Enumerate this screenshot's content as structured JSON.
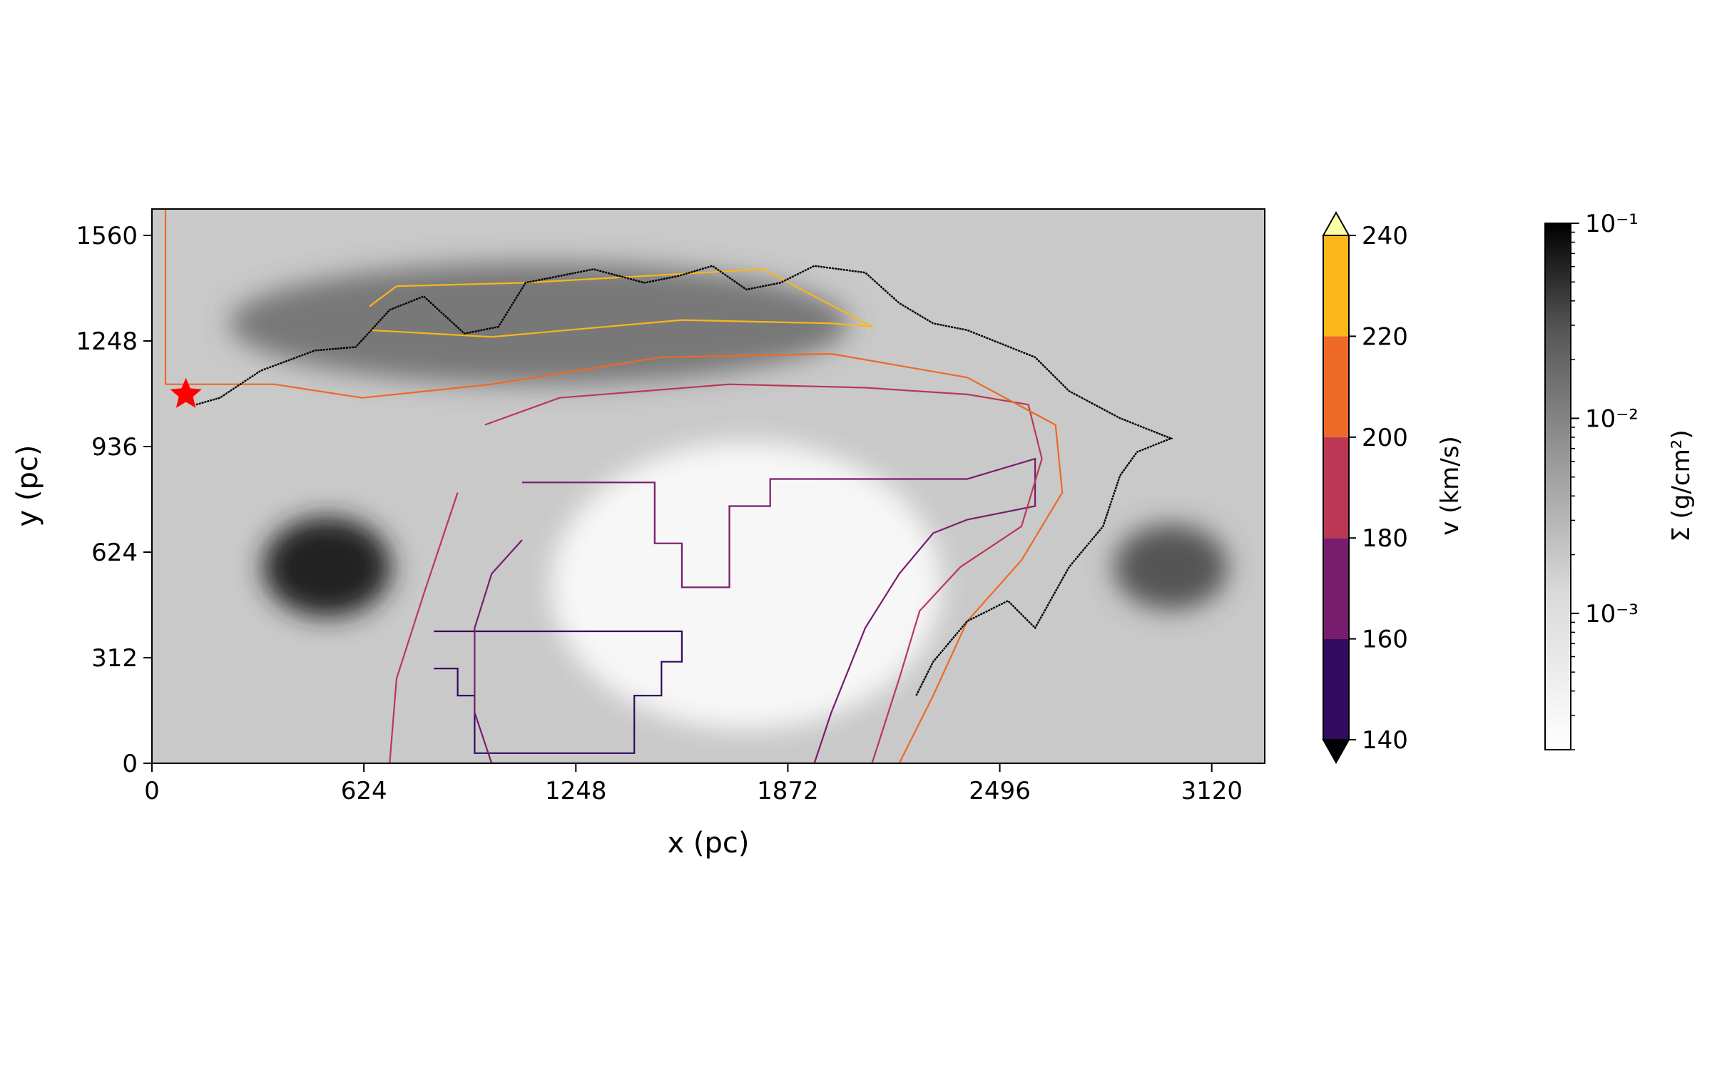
{
  "chart_data": {
    "type": "heatmap",
    "title": "",
    "xlabel": "x (pc)",
    "ylabel": "y (pc)",
    "xlim": [
      0,
      3276
    ],
    "ylim": [
      0,
      1638
    ],
    "x_ticks": [
      "0",
      "624",
      "1248",
      "1872",
      "2496",
      "3120"
    ],
    "x_tick_values": [
      0,
      624,
      1248,
      1872,
      2496,
      3120
    ],
    "y_ticks": [
      "0",
      "312",
      "624",
      "936",
      "1248",
      "1560"
    ],
    "y_tick_values": [
      0,
      312,
      624,
      936,
      1248,
      1560
    ],
    "grid": false,
    "velocity_colorbar": {
      "label": "v (km/s)",
      "ticks": [
        "140",
        "160",
        "180",
        "200",
        "220",
        "240"
      ],
      "levels": [
        140,
        160,
        180,
        200,
        220,
        240
      ],
      "colors": [
        "#330a5f",
        "#781c6d",
        "#bb3754",
        "#ed6925",
        "#fbb61a"
      ],
      "under_color": "#000004",
      "over_color": "#fcffa4",
      "extend": "both"
    },
    "density_colorbar": {
      "label": "Σ (g/cm²)",
      "scale": "log",
      "range": [
        0.0002,
        0.1
      ],
      "ticks": [
        "10⁻¹",
        "10⁻²",
        "10⁻³"
      ],
      "tick_values": [
        0.1,
        0.01,
        0.001
      ],
      "cmap": "Greys"
    },
    "marker": {
      "shape": "star",
      "color": "#ff0000",
      "x": 100,
      "y": 1090
    },
    "density_features": [
      {
        "feature": "dense arc",
        "x": [
          480,
          1800
        ],
        "y": [
          1120,
          1480
        ],
        "level": 0.03
      },
      {
        "feature": "dense knot",
        "x": [
          600
        ],
        "y": [
          580
        ],
        "level": 0.1
      },
      {
        "feature": "dense clump",
        "x": [
          3000
        ],
        "y": [
          580
        ],
        "level": 0.02
      },
      {
        "feature": "void",
        "x": [
          1300,
          2200
        ],
        "y": [
          100,
          950
        ],
        "level": 0.0003
      }
    ],
    "velocity_contours": [
      {
        "level": 160,
        "color": "#330a5f",
        "points": [
          [
            830,
            390
          ],
          [
            1560,
            390
          ],
          [
            1560,
            300
          ],
          [
            1500,
            300
          ],
          [
            1500,
            200
          ],
          [
            1420,
            200
          ],
          [
            1420,
            30
          ],
          [
            950,
            30
          ],
          [
            950,
            200
          ],
          [
            900,
            200
          ],
          [
            900,
            280
          ],
          [
            830,
            280
          ]
        ]
      },
      {
        "level": 180,
        "color": "#781c6d",
        "points": [
          [
            1090,
            830
          ],
          [
            1480,
            830
          ],
          [
            1480,
            650
          ],
          [
            1560,
            650
          ],
          [
            1560,
            520
          ],
          [
            1700,
            520
          ],
          [
            1700,
            760
          ],
          [
            1820,
            760
          ],
          [
            1820,
            840
          ],
          [
            2400,
            840
          ],
          [
            2600,
            900
          ],
          [
            2600,
            760
          ],
          [
            2400,
            720
          ],
          [
            2300,
            680
          ],
          [
            2200,
            560
          ],
          [
            2100,
            400
          ],
          [
            2000,
            150
          ],
          [
            1950,
            0
          ],
          [
            1000,
            0
          ],
          [
            950,
            150
          ],
          [
            950,
            400
          ],
          [
            1000,
            560
          ],
          [
            1090,
            660
          ]
        ]
      },
      {
        "level": 200,
        "color": "#bb3754",
        "points": [
          [
            980,
            1000
          ],
          [
            1200,
            1080
          ],
          [
            1700,
            1120
          ],
          [
            2100,
            1110
          ],
          [
            2400,
            1090
          ],
          [
            2580,
            1060
          ],
          [
            2620,
            900
          ],
          [
            2560,
            700
          ],
          [
            2380,
            580
          ],
          [
            2260,
            450
          ],
          [
            2200,
            250
          ],
          [
            2120,
            0
          ],
          [
            700,
            0
          ],
          [
            720,
            250
          ],
          [
            800,
            500
          ],
          [
            900,
            800
          ]
        ]
      },
      {
        "level": 220,
        "color": "#ed6925",
        "points": [
          [
            40,
            1638
          ],
          [
            40,
            1120
          ],
          [
            360,
            1120
          ],
          [
            620,
            1080
          ],
          [
            1000,
            1120
          ],
          [
            1500,
            1200
          ],
          [
            2000,
            1210
          ],
          [
            2400,
            1140
          ],
          [
            2660,
            1000
          ],
          [
            2680,
            800
          ],
          [
            2560,
            600
          ],
          [
            2400,
            420
          ],
          [
            2300,
            200
          ],
          [
            2200,
            0
          ]
        ]
      },
      {
        "level": 240,
        "color": "#fbb61a",
        "points": [
          [
            640,
            1350
          ],
          [
            720,
            1410
          ],
          [
            1100,
            1420
          ],
          [
            1800,
            1460
          ],
          [
            2120,
            1290
          ],
          [
            2000,
            1300
          ],
          [
            1560,
            1310
          ],
          [
            1000,
            1260
          ],
          [
            640,
            1280
          ]
        ]
      }
    ],
    "shock_front": {
      "color": "#000000",
      "points": [
        [
          130,
          1060
        ],
        [
          200,
          1080
        ],
        [
          320,
          1160
        ],
        [
          480,
          1220
        ],
        [
          600,
          1230
        ],
        [
          700,
          1340
        ],
        [
          800,
          1380
        ],
        [
          920,
          1270
        ],
        [
          1020,
          1290
        ],
        [
          1100,
          1420
        ],
        [
          1300,
          1460
        ],
        [
          1450,
          1420
        ],
        [
          1550,
          1440
        ],
        [
          1650,
          1470
        ],
        [
          1750,
          1400
        ],
        [
          1850,
          1420
        ],
        [
          1950,
          1470
        ],
        [
          2100,
          1450
        ],
        [
          2200,
          1360
        ],
        [
          2300,
          1300
        ],
        [
          2400,
          1280
        ],
        [
          2600,
          1200
        ],
        [
          2700,
          1100
        ],
        [
          2850,
          1020
        ],
        [
          3000,
          960
        ],
        [
          2900,
          920
        ],
        [
          2850,
          850
        ],
        [
          2800,
          700
        ],
        [
          2700,
          580
        ],
        [
          2600,
          400
        ],
        [
          2520,
          480
        ],
        [
          2400,
          420
        ],
        [
          2300,
          300
        ],
        [
          2250,
          200
        ]
      ]
    }
  }
}
